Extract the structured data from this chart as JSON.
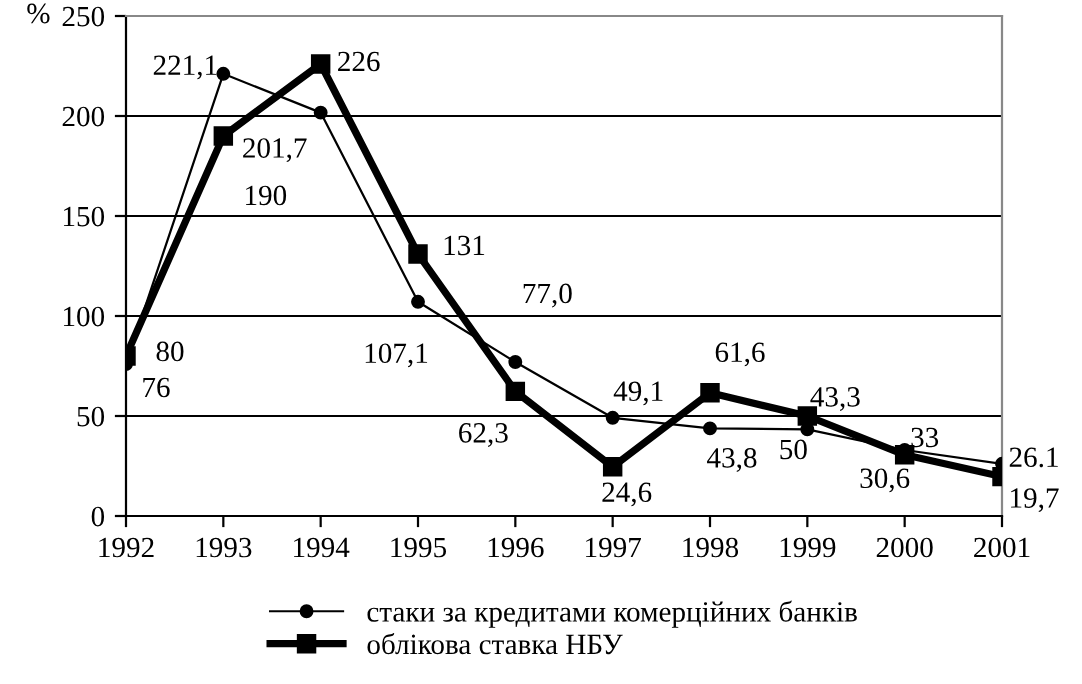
{
  "chart_data": {
    "type": "line",
    "ylabel": "%",
    "x": [
      1992,
      1993,
      1994,
      1995,
      1996,
      1997,
      1998,
      1999,
      2000,
      2001
    ],
    "xlim": [
      1992,
      2001
    ],
    "xticks": [
      1992,
      1993,
      1994,
      1995,
      1996,
      1997,
      1998,
      1999,
      2000,
      2001
    ],
    "ylim": [
      0,
      250
    ],
    "yticks": [
      0,
      50,
      100,
      150,
      200,
      250
    ],
    "grid": "y",
    "legend": "bottom",
    "series": [
      {
        "name": "стаки за кредитами комерційних банків",
        "color": "#000000",
        "marker": "circle",
        "values": [
          76,
          221.1,
          201.7,
          107.1,
          77.0,
          49.1,
          43.8,
          43.3,
          33,
          26.1
        ],
        "value_labels": [
          "76",
          "221,1",
          "201,7",
          "107,1",
          "77,0",
          "49,1",
          "43,8",
          "43,3",
          "33",
          "26.1"
        ]
      },
      {
        "name": "облікова ставка НБУ",
        "color": "#000000",
        "marker": "square",
        "values": [
          80,
          190,
          226,
          131,
          62.3,
          24.6,
          61.6,
          50,
          30.6,
          19.7
        ],
        "value_labels": [
          "80",
          "190",
          "226",
          "131",
          "62,3",
          "24,6",
          "61,6",
          "50",
          "30,6",
          "19,7"
        ]
      }
    ]
  }
}
